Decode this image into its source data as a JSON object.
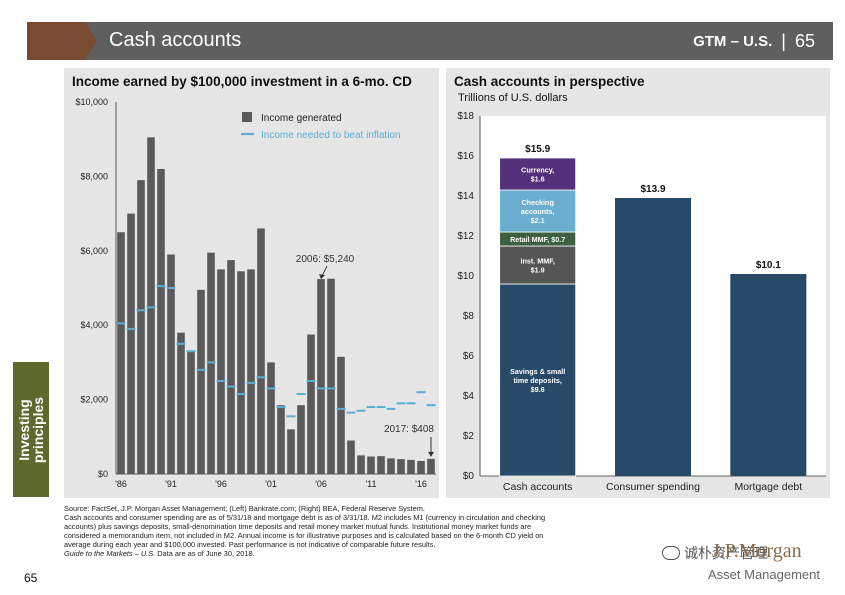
{
  "header": {
    "title": "Cash accounts",
    "brand": "GTM – U.S.",
    "separator": "|",
    "page_number": "65"
  },
  "side_tab": {
    "line1": "Investing",
    "line2": "principles"
  },
  "chart_data": [
    {
      "type": "bar",
      "title": "Income earned by $100,000 investment in a 6-mo. CD",
      "years": [
        1986,
        1987,
        1988,
        1989,
        1990,
        1991,
        1992,
        1993,
        1994,
        1995,
        1996,
        1997,
        1998,
        1999,
        2000,
        2001,
        2002,
        2003,
        2004,
        2005,
        2006,
        2007,
        2008,
        2009,
        2010,
        2011,
        2012,
        2013,
        2014,
        2015,
        2016,
        2017
      ],
      "x_tick_labels": [
        "'86",
        "'91",
        "'96",
        "'01",
        "'06",
        "'11",
        "'16"
      ],
      "x_tick_years": [
        1986,
        1991,
        1996,
        2001,
        2006,
        2011,
        2016
      ],
      "ylim": [
        0,
        10000
      ],
      "y_ticks": [
        0,
        2000,
        4000,
        6000,
        8000,
        10000
      ],
      "y_tick_labels": [
        "$0",
        "$2,000",
        "$4,000",
        "$6,000",
        "$8,000",
        "$10,000"
      ],
      "series": [
        {
          "name": "Income generated",
          "color": "#5a5a5a",
          "values": [
            6500,
            7000,
            7900,
            9050,
            8200,
            5900,
            3800,
            3300,
            4950,
            5950,
            5500,
            5750,
            5450,
            5500,
            6600,
            3000,
            1850,
            1200,
            1850,
            3750,
            5240,
            5250,
            3150,
            900,
            500,
            470,
            480,
            420,
            400,
            380,
            350,
            408
          ]
        },
        {
          "name": "Income needed to beat inflation",
          "color": "#5aaed4",
          "values": [
            4050,
            3900,
            4400,
            4480,
            5050,
            5000,
            3500,
            3300,
            2800,
            3000,
            2500,
            2350,
            2150,
            2450,
            2600,
            2300,
            1800,
            1550,
            2150,
            2500,
            2300,
            2300,
            1750,
            1650,
            1700,
            1800,
            1800,
            1750,
            1900,
            1900,
            2200,
            1850
          ]
        }
      ],
      "annotations": [
        {
          "text": "2006: $5,240",
          "year": 2006,
          "value": 5240
        },
        {
          "text": "2017: $408",
          "year": 2017,
          "value": 408
        }
      ]
    },
    {
      "type": "bar",
      "stacked": true,
      "title": "Cash accounts in perspective",
      "subtitle": "Trillions of U.S. dollars",
      "categories": [
        "Cash accounts",
        "Consumer spending",
        "Mortgage debt"
      ],
      "ylim": [
        0,
        18
      ],
      "y_ticks": [
        0,
        2,
        4,
        6,
        8,
        10,
        12,
        14,
        16,
        18
      ],
      "y_tick_labels": [
        "$0",
        "$2",
        "$4",
        "$6",
        "$8",
        "$10",
        "$12",
        "$14",
        "$16",
        "$18"
      ],
      "stack_total_label": "$15.9",
      "stack": [
        {
          "name": "Savings & small time deposits",
          "value": 9.6,
          "color": "#274a68",
          "lines": [
            "Savings & small",
            "time deposits,",
            "$9.6"
          ]
        },
        {
          "name": "Inst. MMF",
          "value": 1.9,
          "color": "#555555",
          "lines": [
            "Inst. MMF,",
            "$1.9"
          ]
        },
        {
          "name": "Retail MMF",
          "value": 0.7,
          "color": "#3d6040",
          "lines": [
            "Retail MMF, $0.7"
          ]
        },
        {
          "name": "Checking accounts",
          "value": 2.1,
          "color": "#6aaed0",
          "lines": [
            "Checking",
            "accounts,",
            "$2.1"
          ]
        },
        {
          "name": "Currency",
          "value": 1.6,
          "color": "#55307a",
          "lines": [
            "Currency,",
            "$1.6"
          ]
        }
      ],
      "others": [
        {
          "category": "Consumer spending",
          "value": 13.9,
          "label": "$13.9",
          "color": "#274a68"
        },
        {
          "category": "Mortgage debt",
          "value": 10.1,
          "label": "$10.1",
          "color": "#274a68"
        }
      ]
    }
  ],
  "footnote": {
    "lines": [
      "Source: FactSet, J.P. Morgan Asset Management; (Left) Bankrate.com; (Right) BEA, Federal Reserve System.",
      "Cash accounts and consumer spending are as of 5/31/18 and mortgage debt is as of 3/31/18. M2 includes M1 (currency in circulation and checking",
      "accounts) plus savings deposits, small-denomination time deposits and retail money market mutual funds. Institutional money market funds are",
      "considered a memorandum item, not included in M2. Annual income is for illustrative purposes and is calculated based on the 6-month CD yield on",
      "average during each year and $100,000 invested. Past performance is not indicative of comparable future results."
    ],
    "italic_part": "Guide to the Markets – U.S.",
    "last_line_rest": " Data are as of June 30, 2018."
  },
  "page_number": "65",
  "logo": {
    "main": "J.P.Morgan",
    "sub": "Asset Management"
  },
  "watermark": "诚朴资产管理"
}
